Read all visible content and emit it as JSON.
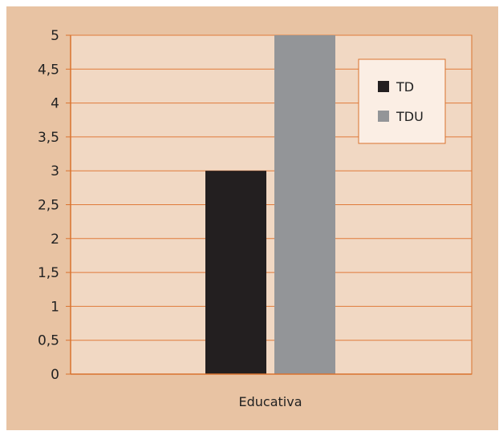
{
  "chart_data": {
    "type": "bar",
    "categories": [
      "Educativa"
    ],
    "series": [
      {
        "name": "TD",
        "values": [
          3
        ]
      },
      {
        "name": "TDU",
        "values": [
          5
        ]
      }
    ],
    "ylim": [
      0,
      5
    ],
    "yticks": [
      "0",
      "0,5",
      "1",
      "1,5",
      "2",
      "2,5",
      "3",
      "3,5",
      "4",
      "4,5",
      "5"
    ],
    "ytick_values": [
      0,
      0.5,
      1,
      1.5,
      2,
      2.5,
      3,
      3.5,
      4,
      4.5,
      5
    ],
    "grid": true,
    "legend_position": "top-right",
    "colors": {
      "background": "#e8c3a3",
      "plot_area": "#f1d8c3",
      "grid": "#e07a3a",
      "axis": "#d9722e",
      "legend_border": "#d9722e",
      "series": [
        "#231f20",
        "#939598"
      ]
    }
  }
}
